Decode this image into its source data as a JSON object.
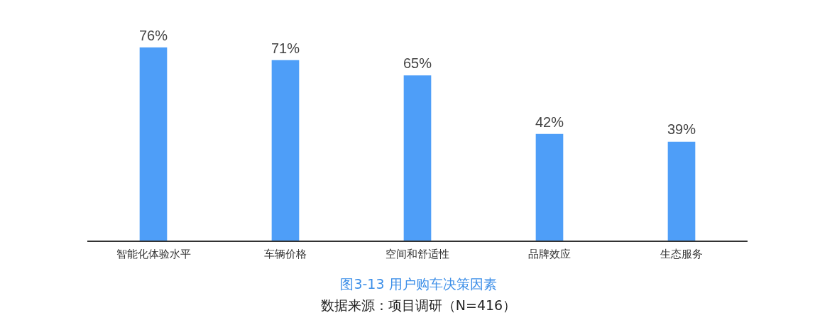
{
  "chart_data": {
    "type": "bar",
    "title": "图3-13 用户购车决策因素",
    "annotations": [
      "数据来源：项目调研（N=416）"
    ],
    "categories": [
      "智能化体验水平",
      "车辆价格",
      "空间和舒适性",
      "品牌效应",
      "生态服务"
    ],
    "values": [
      76,
      71,
      65,
      42,
      39
    ],
    "value_labels": [
      "76%",
      "71%",
      "65%",
      "42%",
      "39%"
    ],
    "color": "#4e9ef8",
    "grid": false,
    "legend": false
  }
}
